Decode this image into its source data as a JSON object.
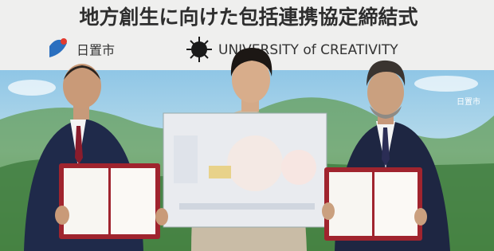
{
  "banner": {
    "title": "地方創生に向けた包括連携協定締結式",
    "logos": [
      {
        "label": "日置市"
      },
      {
        "label": "UNIVERSITY of CREATIVITY"
      }
    ]
  },
  "mural": {
    "label": "日置市"
  }
}
